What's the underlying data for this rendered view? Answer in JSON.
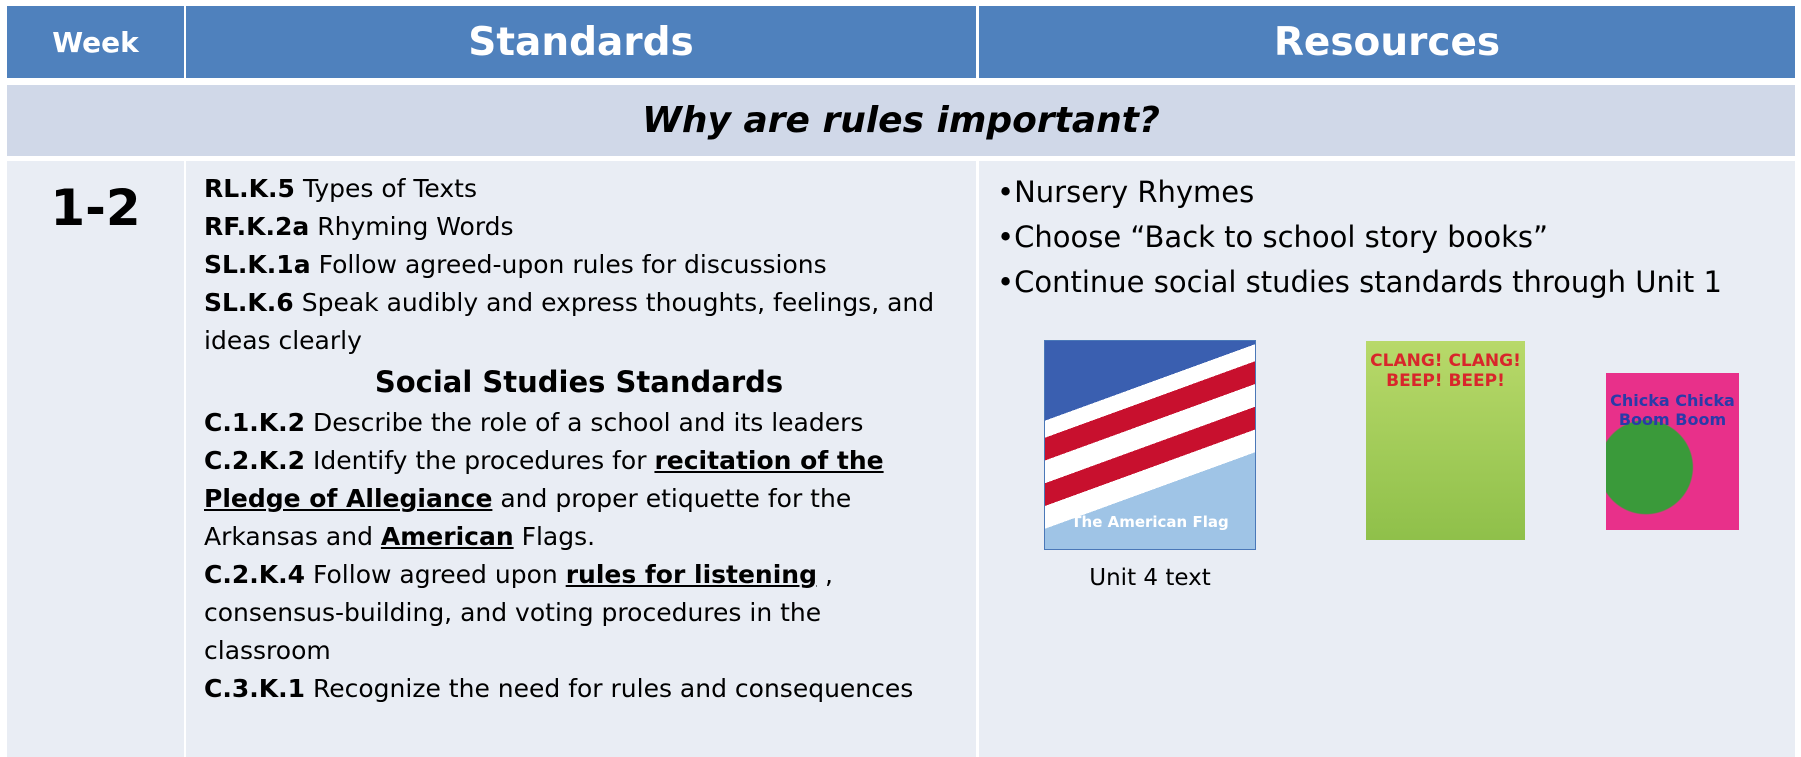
{
  "header": {
    "columns": [
      "Week",
      "Standards",
      "Resources"
    ]
  },
  "question": "Why are rules important?",
  "week": "1-2",
  "standards": [
    {
      "code": "RL.K.5",
      "parts": [
        {
          "text": "Types of Texts"
        }
      ]
    },
    {
      "code": "RF.K.2a",
      "parts": [
        {
          "text": "Rhyming Words"
        }
      ]
    },
    {
      "code": "SL.K.1a",
      "parts": [
        {
          "text": "Follow agreed-upon rules for discussions"
        }
      ]
    },
    {
      "code": "SL.K.6",
      "parts": [
        {
          "text": "Speak audibly and express thoughts, feelings, and ideas clearly"
        }
      ]
    }
  ],
  "social_studies": {
    "title": "Social Studies Standards",
    "standards": [
      {
        "code": "C.1.K.2",
        "parts": [
          {
            "text": "Describe the role of a school and its leaders"
          }
        ]
      },
      {
        "code": "C.2.K.2",
        "parts": [
          {
            "text": "Identify the procedures for"
          },
          {
            "text": "recitation of the Pledge of Allegiance",
            "underline": true
          },
          {
            "text": "and proper etiquette for the Arkansas and"
          },
          {
            "text": "American",
            "underline": true
          },
          {
            "text": "Flags."
          }
        ]
      },
      {
        "code": "C.2.K.4",
        "parts": [
          {
            "text": "Follow agreed upon"
          },
          {
            "text": "rules for listening",
            "underline": true
          },
          {
            "text": ", consensus-building, and voting procedures in the classroom"
          }
        ]
      },
      {
        "code": "C.3.K.1",
        "parts": [
          {
            "text": "Recognize the need for rules and consequences"
          }
        ]
      }
    ]
  },
  "resources": [
    "Nursery Rhymes",
    "Choose “Back to school story books”",
    "Continue social studies standards through Unit 1"
  ],
  "books": [
    {
      "title": "The American Flag",
      "caption": "Unit 4 text"
    },
    {
      "title": "CLANG! CLANG! BEEP! BEEP!"
    },
    {
      "title": "Chicka Chicka Boom Boom"
    }
  ]
}
